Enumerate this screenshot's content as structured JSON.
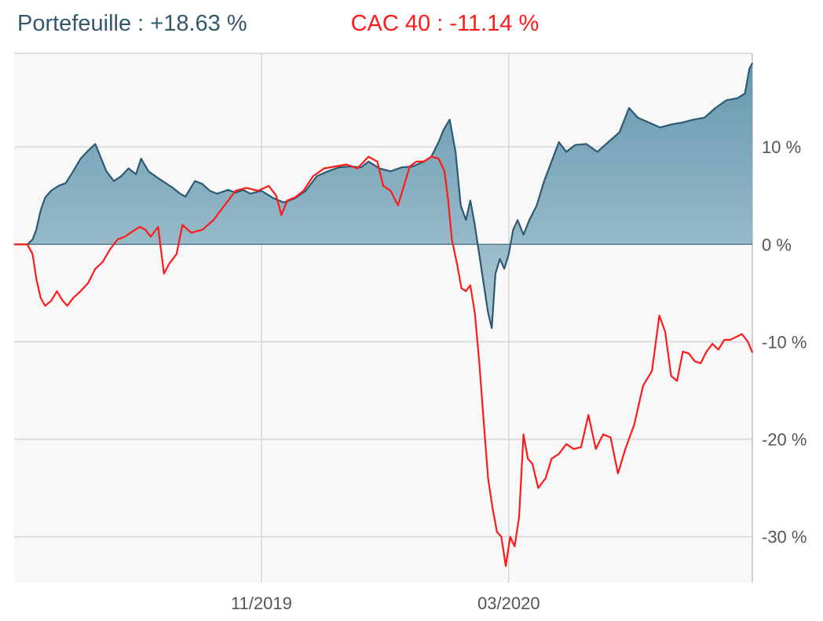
{
  "legend": {
    "portfolio": "Portefeuille : +18.63 %",
    "benchmark": "CAC 40 : -11.14 %"
  },
  "colors": {
    "portfolio_line": "#2d5a72",
    "portfolio_fill_top": "#5e93ab",
    "portfolio_fill_bottom": "#a9c6d3",
    "benchmark_line": "#ff1a1a",
    "plot_background": "#f8f8f8",
    "grid": "#d6d6d6"
  },
  "chart_data": {
    "type": "line",
    "title": "",
    "xlabel": "",
    "ylabel": "",
    "x_ticks": [
      {
        "label": "11/2019",
        "t": 0.335
      },
      {
        "label": "03/2020",
        "t": 0.67
      }
    ],
    "y_ticks": [
      {
        "label": "10 %",
        "value": 10
      },
      {
        "label": "0 %",
        "value": 0
      },
      {
        "label": "-10 %",
        "value": -10
      },
      {
        "label": "-20 %",
        "value": -20
      },
      {
        "label": "-30 %",
        "value": -30
      }
    ],
    "ylim": [
      -34.7,
      19.6
    ],
    "grid": true,
    "series": [
      {
        "name": "Portefeuille",
        "value_label": "+18.63 %",
        "type": "area",
        "points": [
          [
            0.0,
            0.0
          ],
          [
            0.018,
            0.0
          ],
          [
            0.025,
            0.5
          ],
          [
            0.03,
            1.5
          ],
          [
            0.036,
            3.5
          ],
          [
            0.042,
            4.8
          ],
          [
            0.05,
            5.5
          ],
          [
            0.06,
            6.0
          ],
          [
            0.07,
            6.3
          ],
          [
            0.08,
            7.5
          ],
          [
            0.09,
            8.8
          ],
          [
            0.1,
            9.6
          ],
          [
            0.11,
            10.3
          ],
          [
            0.118,
            8.8
          ],
          [
            0.125,
            7.5
          ],
          [
            0.135,
            6.5
          ],
          [
            0.145,
            7.0
          ],
          [
            0.155,
            7.8
          ],
          [
            0.165,
            7.2
          ],
          [
            0.172,
            8.8
          ],
          [
            0.182,
            7.5
          ],
          [
            0.195,
            6.8
          ],
          [
            0.205,
            6.3
          ],
          [
            0.215,
            5.8
          ],
          [
            0.225,
            5.2
          ],
          [
            0.232,
            4.9
          ],
          [
            0.245,
            6.5
          ],
          [
            0.255,
            6.2
          ],
          [
            0.265,
            5.5
          ],
          [
            0.275,
            5.2
          ],
          [
            0.29,
            5.6
          ],
          [
            0.3,
            5.3
          ],
          [
            0.31,
            5.6
          ],
          [
            0.32,
            5.2
          ],
          [
            0.335,
            5.5
          ],
          [
            0.35,
            4.8
          ],
          [
            0.365,
            4.3
          ],
          [
            0.38,
            4.7
          ],
          [
            0.395,
            5.5
          ],
          [
            0.41,
            7.0
          ],
          [
            0.425,
            7.5
          ],
          [
            0.44,
            7.9
          ],
          [
            0.455,
            8.0
          ],
          [
            0.47,
            7.9
          ],
          [
            0.48,
            8.5
          ],
          [
            0.495,
            7.8
          ],
          [
            0.51,
            7.5
          ],
          [
            0.525,
            7.9
          ],
          [
            0.54,
            8.0
          ],
          [
            0.555,
            8.5
          ],
          [
            0.565,
            9.0
          ],
          [
            0.575,
            10.5
          ],
          [
            0.582,
            11.8
          ],
          [
            0.59,
            12.8
          ],
          [
            0.598,
            9.5
          ],
          [
            0.605,
            4.0
          ],
          [
            0.612,
            2.5
          ],
          [
            0.618,
            4.5
          ],
          [
            0.624,
            2.0
          ],
          [
            0.63,
            -1.0
          ],
          [
            0.636,
            -4.0
          ],
          [
            0.642,
            -7.0
          ],
          [
            0.647,
            -8.6
          ],
          [
            0.652,
            -3.0
          ],
          [
            0.658,
            -1.5
          ],
          [
            0.664,
            -2.5
          ],
          [
            0.67,
            -1.0
          ],
          [
            0.676,
            1.5
          ],
          [
            0.682,
            2.5
          ],
          [
            0.69,
            1.0
          ],
          [
            0.698,
            2.5
          ],
          [
            0.708,
            4.0
          ],
          [
            0.718,
            6.5
          ],
          [
            0.728,
            8.5
          ],
          [
            0.738,
            10.5
          ],
          [
            0.748,
            9.5
          ],
          [
            0.76,
            10.2
          ],
          [
            0.775,
            10.3
          ],
          [
            0.79,
            9.5
          ],
          [
            0.805,
            10.5
          ],
          [
            0.82,
            11.5
          ],
          [
            0.833,
            14.0
          ],
          [
            0.845,
            13.0
          ],
          [
            0.86,
            12.5
          ],
          [
            0.875,
            12.0
          ],
          [
            0.89,
            12.3
          ],
          [
            0.905,
            12.5
          ],
          [
            0.92,
            12.8
          ],
          [
            0.935,
            13.0
          ],
          [
            0.95,
            14.0
          ],
          [
            0.965,
            14.8
          ],
          [
            0.98,
            15.0
          ],
          [
            0.99,
            15.5
          ],
          [
            0.996,
            18.0
          ],
          [
            1.0,
            18.6
          ]
        ]
      },
      {
        "name": "CAC 40",
        "value_label": "-11.14 %",
        "type": "line",
        "points": [
          [
            0.0,
            0.0
          ],
          [
            0.018,
            0.0
          ],
          [
            0.025,
            -1.0
          ],
          [
            0.03,
            -3.5
          ],
          [
            0.036,
            -5.5
          ],
          [
            0.042,
            -6.3
          ],
          [
            0.05,
            -5.8
          ],
          [
            0.058,
            -4.8
          ],
          [
            0.066,
            -5.8
          ],
          [
            0.072,
            -6.3
          ],
          [
            0.08,
            -5.5
          ],
          [
            0.09,
            -4.8
          ],
          [
            0.1,
            -4.0
          ],
          [
            0.11,
            -2.5
          ],
          [
            0.12,
            -1.8
          ],
          [
            0.13,
            -0.5
          ],
          [
            0.14,
            0.5
          ],
          [
            0.15,
            0.8
          ],
          [
            0.16,
            1.3
          ],
          [
            0.17,
            1.8
          ],
          [
            0.178,
            1.5
          ],
          [
            0.185,
            0.8
          ],
          [
            0.195,
            1.8
          ],
          [
            0.203,
            -3.0
          ],
          [
            0.21,
            -2.0
          ],
          [
            0.22,
            -1.0
          ],
          [
            0.228,
            2.0
          ],
          [
            0.24,
            1.2
          ],
          [
            0.255,
            1.5
          ],
          [
            0.27,
            2.5
          ],
          [
            0.285,
            4.0
          ],
          [
            0.3,
            5.5
          ],
          [
            0.315,
            5.8
          ],
          [
            0.33,
            5.5
          ],
          [
            0.345,
            6.0
          ],
          [
            0.355,
            5.0
          ],
          [
            0.362,
            3.0
          ],
          [
            0.37,
            4.5
          ],
          [
            0.38,
            4.8
          ],
          [
            0.392,
            5.5
          ],
          [
            0.405,
            7.0
          ],
          [
            0.42,
            7.8
          ],
          [
            0.435,
            8.0
          ],
          [
            0.45,
            8.2
          ],
          [
            0.465,
            7.8
          ],
          [
            0.48,
            9.0
          ],
          [
            0.492,
            8.5
          ],
          [
            0.5,
            6.0
          ],
          [
            0.51,
            5.5
          ],
          [
            0.52,
            4.0
          ],
          [
            0.528,
            6.0
          ],
          [
            0.536,
            8.0
          ],
          [
            0.545,
            8.5
          ],
          [
            0.555,
            8.5
          ],
          [
            0.565,
            9.0
          ],
          [
            0.575,
            8.8
          ],
          [
            0.583,
            7.5
          ],
          [
            0.588,
            4.5
          ],
          [
            0.593,
            0.5
          ],
          [
            0.6,
            -2.0
          ],
          [
            0.606,
            -4.5
          ],
          [
            0.612,
            -4.8
          ],
          [
            0.618,
            -4.2
          ],
          [
            0.624,
            -7.0
          ],
          [
            0.63,
            -12.0
          ],
          [
            0.636,
            -18.0
          ],
          [
            0.642,
            -24.0
          ],
          [
            0.648,
            -27.0
          ],
          [
            0.654,
            -29.5
          ],
          [
            0.66,
            -30.0
          ],
          [
            0.666,
            -33.0
          ],
          [
            0.672,
            -30.0
          ],
          [
            0.678,
            -31.0
          ],
          [
            0.684,
            -28.0
          ],
          [
            0.69,
            -19.5
          ],
          [
            0.696,
            -22.0
          ],
          [
            0.702,
            -22.5
          ],
          [
            0.71,
            -25.0
          ],
          [
            0.72,
            -24.0
          ],
          [
            0.728,
            -22.0
          ],
          [
            0.738,
            -21.5
          ],
          [
            0.748,
            -20.5
          ],
          [
            0.758,
            -21.0
          ],
          [
            0.768,
            -20.8
          ],
          [
            0.778,
            -17.5
          ],
          [
            0.788,
            -21.0
          ],
          [
            0.798,
            -19.5
          ],
          [
            0.808,
            -19.8
          ],
          [
            0.818,
            -23.5
          ],
          [
            0.828,
            -21.0
          ],
          [
            0.84,
            -18.5
          ],
          [
            0.852,
            -14.5
          ],
          [
            0.864,
            -13.0
          ],
          [
            0.874,
            -7.3
          ],
          [
            0.882,
            -9.0
          ],
          [
            0.89,
            -13.5
          ],
          [
            0.898,
            -14.0
          ],
          [
            0.906,
            -11.0
          ],
          [
            0.914,
            -11.2
          ],
          [
            0.922,
            -12.0
          ],
          [
            0.93,
            -12.2
          ],
          [
            0.938,
            -11.0
          ],
          [
            0.946,
            -10.2
          ],
          [
            0.954,
            -10.8
          ],
          [
            0.962,
            -9.8
          ],
          [
            0.97,
            -9.8
          ],
          [
            0.978,
            -9.5
          ],
          [
            0.986,
            -9.2
          ],
          [
            0.994,
            -10.0
          ],
          [
            1.0,
            -11.1
          ]
        ]
      }
    ]
  }
}
